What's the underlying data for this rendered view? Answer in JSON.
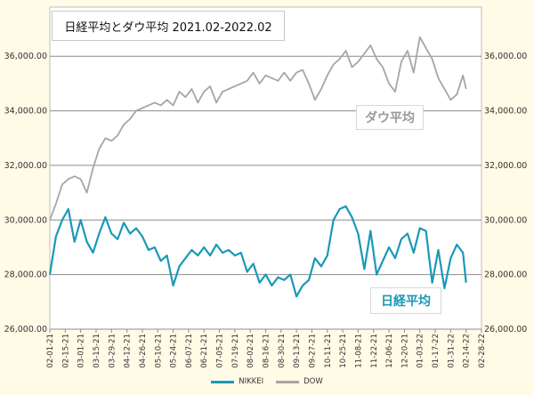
{
  "chart_data": {
    "type": "line",
    "title": "日経平均とダウ平均 2021.02-2022.02",
    "x_tick_labels": [
      "02-01-21",
      "02-15-21",
      "03-01-21",
      "03-15-21",
      "03-29-21",
      "04-12-21",
      "04-26-21",
      "05-10-21",
      "05-24-21",
      "06-07-21",
      "06-21-21",
      "07-05-21",
      "07-19-21",
      "08-02-21",
      "08-16-21",
      "08-30-21",
      "09-13-21",
      "09-27-21",
      "10-11-21",
      "10-25-21",
      "11-08-21",
      "11-22-21",
      "12-06-21",
      "12-20-21",
      "01-03-22",
      "01-17-22",
      "01-31-22",
      "02-14-22",
      "02-28-22"
    ],
    "y_tick_labels": [
      "26,000.00",
      "28,000.00",
      "30,000.00",
      "32,000.00",
      "34,000.00",
      "36,000.00"
    ],
    "ylim": [
      26000,
      37800
    ],
    "grid": true,
    "legend_position": "bottom",
    "series": [
      {
        "name": "NIKKEI",
        "color": "#1b98b8",
        "annotation": "日経平均",
        "x_index": [
          0.0,
          0.4,
          0.8,
          1.2,
          1.6,
          2.0,
          2.4,
          2.8,
          3.2,
          3.6,
          4.0,
          4.4,
          4.8,
          5.2,
          5.6,
          6.0,
          6.4,
          6.8,
          7.2,
          7.6,
          8.0,
          8.4,
          8.8,
          9.2,
          9.6,
          10.0,
          10.4,
          10.8,
          11.2,
          11.6,
          12.0,
          12.4,
          12.8,
          13.2,
          13.6,
          14.0,
          14.4,
          14.8,
          15.2,
          15.6,
          16.0,
          16.4,
          16.8,
          17.2,
          17.6,
          18.0,
          18.4,
          18.8,
          19.2,
          19.6,
          20.0,
          20.4,
          20.8,
          21.2,
          21.6,
          22.0,
          22.4,
          22.8,
          23.2,
          23.6,
          24.0,
          24.4,
          24.8,
          25.2,
          25.6,
          26.0,
          26.4,
          26.8,
          27.0
        ],
        "values": [
          28000,
          29400,
          30000,
          30400,
          29200,
          30000,
          29200,
          28800,
          29500,
          30100,
          29500,
          29300,
          29900,
          29500,
          29700,
          29400,
          28900,
          29000,
          28500,
          28700,
          27600,
          28300,
          28600,
          28900,
          28700,
          29000,
          28700,
          29100,
          28800,
          28900,
          28700,
          28800,
          28100,
          28400,
          27700,
          28000,
          27600,
          27900,
          27800,
          28000,
          27200,
          27600,
          27800,
          28600,
          28300,
          28700,
          30000,
          30400,
          30500,
          30100,
          29500,
          28200,
          29600,
          28000,
          28500,
          29000,
          28600,
          29300,
          29500,
          28800,
          29700,
          29600,
          27700,
          28900,
          27500,
          28600,
          29100,
          28800,
          27700
        ],
        "_note": "values in JPY index points"
      },
      {
        "name": "DOW",
        "color": "#a6a6a6",
        "annotation": "ダウ平均",
        "x_index": [
          0.0,
          0.4,
          0.8,
          1.2,
          1.6,
          2.0,
          2.4,
          2.8,
          3.2,
          3.6,
          4.0,
          4.4,
          4.8,
          5.2,
          5.6,
          6.0,
          6.4,
          6.8,
          7.2,
          7.6,
          8.0,
          8.4,
          8.8,
          9.2,
          9.6,
          10.0,
          10.4,
          10.8,
          11.2,
          11.6,
          12.0,
          12.4,
          12.8,
          13.2,
          13.6,
          14.0,
          14.4,
          14.8,
          15.2,
          15.6,
          16.0,
          16.4,
          16.8,
          17.2,
          17.6,
          18.0,
          18.4,
          18.8,
          19.2,
          19.6,
          20.0,
          20.4,
          20.8,
          21.2,
          21.6,
          22.0,
          22.4,
          22.8,
          23.2,
          23.6,
          24.0,
          24.4,
          24.8,
          25.2,
          25.6,
          26.0,
          26.4,
          26.8,
          27.0
        ],
        "values": [
          30000,
          30600,
          31300,
          31500,
          31600,
          31500,
          31000,
          31900,
          32600,
          33000,
          32900,
          33100,
          33500,
          33700,
          34000,
          34100,
          34200,
          34300,
          34200,
          34400,
          34200,
          34700,
          34500,
          34800,
          34300,
          34700,
          34900,
          34300,
          34700,
          34800,
          34900,
          35000,
          35100,
          35400,
          35000,
          35300,
          35200,
          35100,
          35400,
          35100,
          35400,
          35500,
          35000,
          34400,
          34800,
          35300,
          35700,
          35900,
          36200,
          35600,
          35800,
          36100,
          36400,
          35900,
          35600,
          35000,
          34700,
          35800,
          36200,
          35400,
          36700,
          36300,
          35900,
          35200,
          34800,
          34400,
          34600,
          35300,
          34800
        ],
        "_note": "values in USD index points"
      }
    ]
  }
}
